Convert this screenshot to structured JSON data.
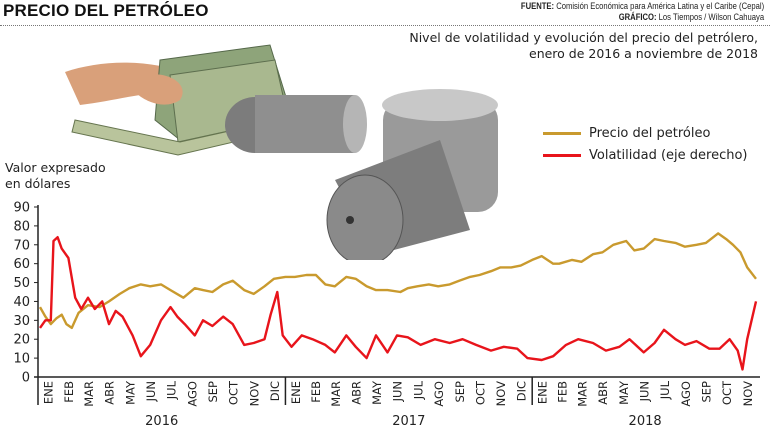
{
  "header": {
    "title": "PRECIO DEL PETRÓLEO",
    "source_label": "FUENTE:",
    "source_text": "Comisión Económica para América Latina y el Caribe (Cepal)",
    "graphic_label": "GRÁFICO:",
    "graphic_text": "Los Tiempos / Wilson Cahuaya"
  },
  "chart_data": {
    "type": "line",
    "title": "Nivel de volatilidad y evolución del precio del petrólero,",
    "subtitle": "enero de 2016 a noviembre de 2018",
    "ylabel_line1": "Valor expresado",
    "ylabel_line2": "en dólares",
    "ylim": [
      0,
      90
    ],
    "yticks": [
      "0",
      "10",
      "20",
      "30",
      "40",
      "50",
      "60",
      "70",
      "80",
      "90"
    ],
    "grid": false,
    "legend_position": "top-right",
    "years": [
      "2016",
      "2017",
      "2018"
    ],
    "months": {
      "2016": [
        "ENE",
        "FEB",
        "MAR",
        "ABR",
        "MAY",
        "JUN",
        "JUL",
        "AGO",
        "SEP",
        "OCT",
        "NOV",
        "DIC"
      ],
      "2017": [
        "ENE",
        "FEB",
        "MAR",
        "ABR",
        "MAY",
        "JUN",
        "JUL",
        "AGO",
        "SEP",
        "OCT",
        "NOV",
        "DIC"
      ],
      "2018": [
        "ENE",
        "FEB",
        "MAR",
        "ABR",
        "MAY",
        "JUN",
        "JUL",
        "AGO",
        "SEP",
        "OCT",
        "NOV"
      ]
    },
    "series": [
      {
        "name": "Precio del petróleo",
        "color": "#c99a2e",
        "x": [
          "2016-01-04",
          "2016-01-12",
          "2016-01-20",
          "2016-01-28",
          "2016-02-05",
          "2016-02-12",
          "2016-02-20",
          "2016-03-01",
          "2016-03-15",
          "2016-04-01",
          "2016-04-15",
          "2016-05-01",
          "2016-05-15",
          "2016-06-01",
          "2016-06-15",
          "2016-07-01",
          "2016-07-15",
          "2016-08-03",
          "2016-08-20",
          "2016-09-01",
          "2016-09-15",
          "2016-10-01",
          "2016-10-15",
          "2016-11-01",
          "2016-11-15",
          "2016-12-01",
          "2016-12-15",
          "2017-01-01",
          "2017-01-15",
          "2017-02-01",
          "2017-02-15",
          "2017-03-01",
          "2017-03-15",
          "2017-04-01",
          "2017-04-15",
          "2017-05-01",
          "2017-05-15",
          "2017-06-01",
          "2017-06-20",
          "2017-07-01",
          "2017-07-15",
          "2017-08-01",
          "2017-08-15",
          "2017-09-01",
          "2017-09-15",
          "2017-10-01",
          "2017-10-15",
          "2017-11-01",
          "2017-11-15",
          "2017-12-01",
          "2017-12-15",
          "2018-01-01",
          "2018-01-15",
          "2018-02-01",
          "2018-02-10",
          "2018-03-01",
          "2018-03-15",
          "2018-04-01",
          "2018-04-15",
          "2018-05-01",
          "2018-05-20",
          "2018-06-01",
          "2018-06-15",
          "2018-07-01",
          "2018-07-15",
          "2018-08-01",
          "2018-08-15",
          "2018-09-01",
          "2018-09-15",
          "2018-10-03",
          "2018-10-15",
          "2018-10-25",
          "2018-11-05",
          "2018-11-15",
          "2018-11-28"
        ],
        "values": [
          37,
          32,
          28,
          31,
          33,
          28,
          26,
          34,
          38,
          37,
          40,
          44,
          47,
          49,
          48,
          49,
          46,
          42,
          47,
          46,
          45,
          49,
          51,
          46,
          44,
          48,
          52,
          53,
          53,
          54,
          54,
          49,
          48,
          53,
          52,
          48,
          46,
          46,
          45,
          47,
          48,
          49,
          48,
          49,
          51,
          53,
          54,
          56,
          58,
          58,
          59,
          62,
          64,
          60,
          60,
          62,
          61,
          65,
          66,
          70,
          72,
          67,
          68,
          73,
          72,
          71,
          69,
          70,
          71,
          76,
          73,
          70,
          66,
          58,
          52
        ]
      },
      {
        "name": "Volatilidad (eje derecho)",
        "color": "#e8141b",
        "x": [
          "2016-01-04",
          "2016-01-12",
          "2016-01-20",
          "2016-01-24",
          "2016-01-30",
          "2016-02-05",
          "2016-02-15",
          "2016-02-25",
          "2016-03-05",
          "2016-03-15",
          "2016-03-25",
          "2016-04-05",
          "2016-04-15",
          "2016-04-25",
          "2016-05-05",
          "2016-05-20",
          "2016-06-01",
          "2016-06-15",
          "2016-07-01",
          "2016-07-15",
          "2016-07-25",
          "2016-08-05",
          "2016-08-20",
          "2016-09-01",
          "2016-09-15",
          "2016-10-01",
          "2016-10-15",
          "2016-11-01",
          "2016-11-15",
          "2016-12-01",
          "2016-12-10",
          "2016-12-20",
          "2016-12-28",
          "2017-01-10",
          "2017-01-25",
          "2017-02-10",
          "2017-03-01",
          "2017-03-15",
          "2017-04-01",
          "2017-04-15",
          "2017-05-01",
          "2017-05-15",
          "2017-06-01",
          "2017-06-15",
          "2017-07-01",
          "2017-07-20",
          "2017-08-10",
          "2017-09-01",
          "2017-09-20",
          "2017-10-10",
          "2017-11-01",
          "2017-11-20",
          "2017-12-10",
          "2017-12-25",
          "2018-01-15",
          "2018-02-01",
          "2018-02-20",
          "2018-03-10",
          "2018-04-01",
          "2018-04-20",
          "2018-05-10",
          "2018-05-25",
          "2018-06-15",
          "2018-07-01",
          "2018-07-15",
          "2018-08-01",
          "2018-08-15",
          "2018-09-01",
          "2018-09-20",
          "2018-10-05",
          "2018-10-20",
          "2018-11-01",
          "2018-11-08",
          "2018-11-15",
          "2018-11-28"
        ],
        "values": [
          26,
          30,
          30,
          72,
          74,
          68,
          63,
          42,
          36,
          42,
          36,
          40,
          28,
          35,
          32,
          22,
          11,
          17,
          30,
          37,
          32,
          28,
          22,
          30,
          27,
          32,
          28,
          17,
          18,
          20,
          33,
          45,
          22,
          16,
          22,
          20,
          17,
          13,
          22,
          16,
          10,
          22,
          13,
          22,
          21,
          17,
          20,
          18,
          20,
          17,
          14,
          16,
          15,
          10,
          9,
          11,
          17,
          20,
          18,
          14,
          16,
          20,
          13,
          18,
          25,
          20,
          17,
          19,
          15,
          15,
          20,
          14,
          4,
          20,
          40
        ]
      }
    ]
  }
}
